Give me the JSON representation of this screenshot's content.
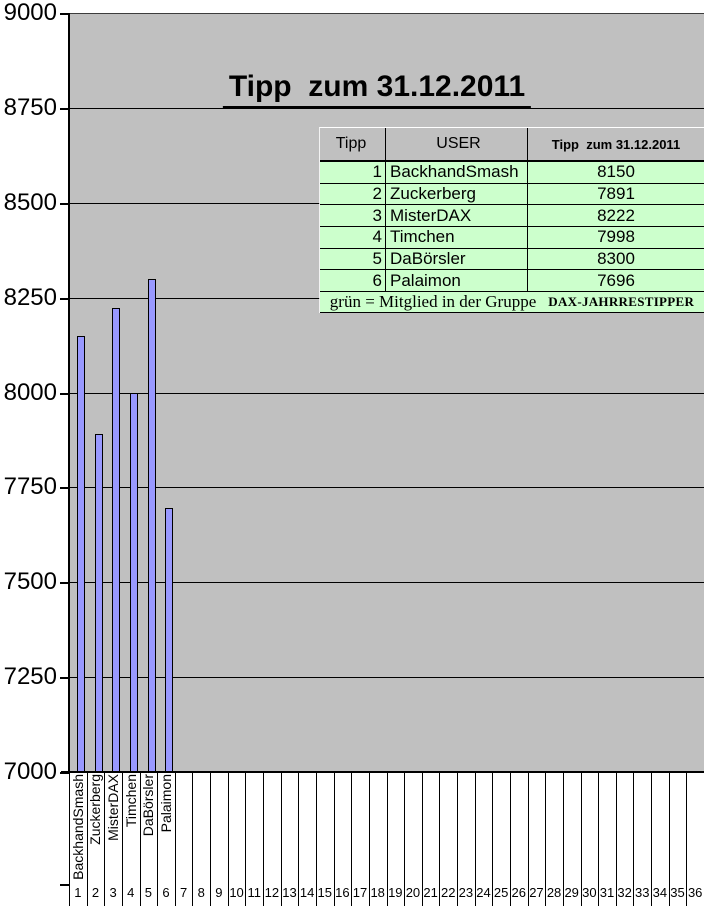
{
  "colors": {
    "plot_bg": "#c0c0c0",
    "bar_fill": "#9999ff",
    "bar_border": "#000000",
    "row_green": "#ccffcc",
    "gridline": "#000000"
  },
  "chart_data": {
    "type": "bar",
    "title": "Tipp  zum 31.12.2011",
    "categories": [
      "BackhandSmash",
      "Zuckerberg",
      "MisterDAX",
      "Timchen",
      "DaBörsler",
      "Palaimon"
    ],
    "values": [
      8150,
      7891,
      8222,
      7998,
      8300,
      7696
    ],
    "num_slots": 36,
    "xlabel": "",
    "ylabel": "",
    "ylim": [
      7000,
      9000
    ],
    "yticks": [
      9000,
      8750,
      8500,
      8250,
      8000,
      7750,
      7500,
      7250,
      7000
    ],
    "grid": true,
    "legend_position": "none",
    "plot_background": "#c0c0c0"
  },
  "table": {
    "headers": [
      "Tipp",
      "USER",
      "Tipp  zum 31.12.2011"
    ],
    "rows": [
      [
        "1",
        "BackhandSmash",
        "8150"
      ],
      [
        "2",
        "Zuckerberg",
        "7891"
      ],
      [
        "3",
        "MisterDAX",
        "8222"
      ],
      [
        "4",
        "Timchen",
        "7998"
      ],
      [
        "5",
        "DaBörsler",
        "8300"
      ],
      [
        "6",
        "Palaimon",
        "7696"
      ]
    ],
    "footer": {
      "text": "grün = Mitglied in der Gruppe",
      "group": "DAX-JAHRRESTIPPER"
    }
  }
}
